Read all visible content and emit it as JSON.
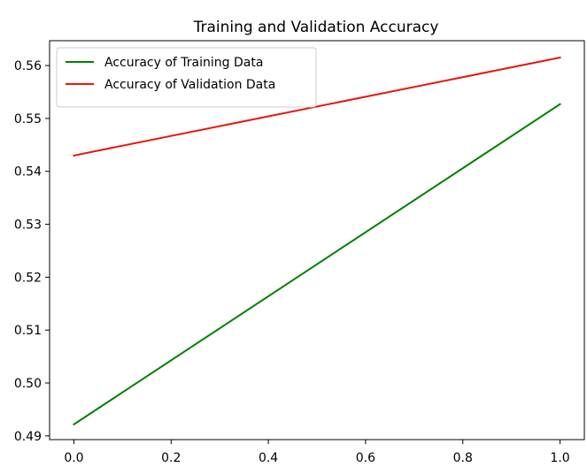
{
  "chart_data": {
    "type": "line",
    "title": "Training and Validation Accuracy",
    "xlabel": "",
    "ylabel": "",
    "x": [
      0.0,
      1.0
    ],
    "xlim": [
      -0.05,
      1.05
    ],
    "ylim": [
      0.4893,
      0.5647
    ],
    "xticks": [
      0.0,
      0.2,
      0.4,
      0.6,
      0.8,
      1.0
    ],
    "xtick_labels": [
      "0.0",
      "0.2",
      "0.4",
      "0.6",
      "0.8",
      "1.0"
    ],
    "yticks": [
      0.49,
      0.5,
      0.51,
      0.52,
      0.53,
      0.54,
      0.55,
      0.56
    ],
    "ytick_labels": [
      "0.49",
      "0.50",
      "0.51",
      "0.52",
      "0.53",
      "0.54",
      "0.55",
      "0.56"
    ],
    "grid": false,
    "legend_position": "upper-left",
    "series": [
      {
        "name": "Accuracy of Training Data",
        "color": "#008000",
        "values": [
          0.4922,
          0.5527
        ]
      },
      {
        "name": "Accuracy of Validation Data",
        "color": "#e8160c",
        "values": [
          0.543,
          0.5615
        ]
      }
    ]
  }
}
